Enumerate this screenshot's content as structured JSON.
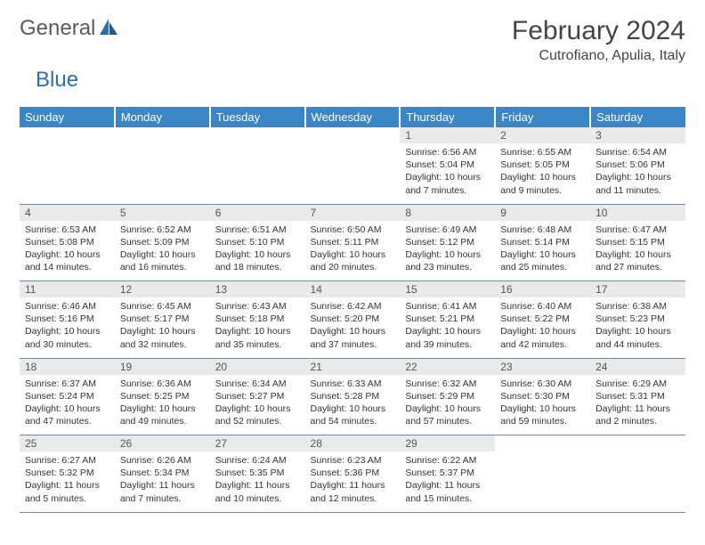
{
  "logo": {
    "text1": "General",
    "text2": "Blue"
  },
  "title": "February 2024",
  "location": "Cutrofiano, Apulia, Italy",
  "colors": {
    "header_bg": "#3b86c6",
    "header_text": "#ffffff",
    "daynum_bg": "#eaeaea",
    "border": "#6a8bb0",
    "logo_gray": "#5a5a5a",
    "logo_blue": "#2b6fb0"
  },
  "day_headers": [
    "Sunday",
    "Monday",
    "Tuesday",
    "Wednesday",
    "Thursday",
    "Friday",
    "Saturday"
  ],
  "weeks": [
    {
      "days": [
        null,
        null,
        null,
        null,
        {
          "n": "1",
          "sr": "6:56 AM",
          "ss": "5:04 PM",
          "dl": "10 hours and 7 minutes."
        },
        {
          "n": "2",
          "sr": "6:55 AM",
          "ss": "5:05 PM",
          "dl": "10 hours and 9 minutes."
        },
        {
          "n": "3",
          "sr": "6:54 AM",
          "ss": "5:06 PM",
          "dl": "10 hours and 11 minutes."
        }
      ]
    },
    {
      "days": [
        {
          "n": "4",
          "sr": "6:53 AM",
          "ss": "5:08 PM",
          "dl": "10 hours and 14 minutes."
        },
        {
          "n": "5",
          "sr": "6:52 AM",
          "ss": "5:09 PM",
          "dl": "10 hours and 16 minutes."
        },
        {
          "n": "6",
          "sr": "6:51 AM",
          "ss": "5:10 PM",
          "dl": "10 hours and 18 minutes."
        },
        {
          "n": "7",
          "sr": "6:50 AM",
          "ss": "5:11 PM",
          "dl": "10 hours and 20 minutes."
        },
        {
          "n": "8",
          "sr": "6:49 AM",
          "ss": "5:12 PM",
          "dl": "10 hours and 23 minutes."
        },
        {
          "n": "9",
          "sr": "6:48 AM",
          "ss": "5:14 PM",
          "dl": "10 hours and 25 minutes."
        },
        {
          "n": "10",
          "sr": "6:47 AM",
          "ss": "5:15 PM",
          "dl": "10 hours and 27 minutes."
        }
      ]
    },
    {
      "days": [
        {
          "n": "11",
          "sr": "6:46 AM",
          "ss": "5:16 PM",
          "dl": "10 hours and 30 minutes."
        },
        {
          "n": "12",
          "sr": "6:45 AM",
          "ss": "5:17 PM",
          "dl": "10 hours and 32 minutes."
        },
        {
          "n": "13",
          "sr": "6:43 AM",
          "ss": "5:18 PM",
          "dl": "10 hours and 35 minutes."
        },
        {
          "n": "14",
          "sr": "6:42 AM",
          "ss": "5:20 PM",
          "dl": "10 hours and 37 minutes."
        },
        {
          "n": "15",
          "sr": "6:41 AM",
          "ss": "5:21 PM",
          "dl": "10 hours and 39 minutes."
        },
        {
          "n": "16",
          "sr": "6:40 AM",
          "ss": "5:22 PM",
          "dl": "10 hours and 42 minutes."
        },
        {
          "n": "17",
          "sr": "6:38 AM",
          "ss": "5:23 PM",
          "dl": "10 hours and 44 minutes."
        }
      ]
    },
    {
      "days": [
        {
          "n": "18",
          "sr": "6:37 AM",
          "ss": "5:24 PM",
          "dl": "10 hours and 47 minutes."
        },
        {
          "n": "19",
          "sr": "6:36 AM",
          "ss": "5:25 PM",
          "dl": "10 hours and 49 minutes."
        },
        {
          "n": "20",
          "sr": "6:34 AM",
          "ss": "5:27 PM",
          "dl": "10 hours and 52 minutes."
        },
        {
          "n": "21",
          "sr": "6:33 AM",
          "ss": "5:28 PM",
          "dl": "10 hours and 54 minutes."
        },
        {
          "n": "22",
          "sr": "6:32 AM",
          "ss": "5:29 PM",
          "dl": "10 hours and 57 minutes."
        },
        {
          "n": "23",
          "sr": "6:30 AM",
          "ss": "5:30 PM",
          "dl": "10 hours and 59 minutes."
        },
        {
          "n": "24",
          "sr": "6:29 AM",
          "ss": "5:31 PM",
          "dl": "11 hours and 2 minutes."
        }
      ]
    },
    {
      "days": [
        {
          "n": "25",
          "sr": "6:27 AM",
          "ss": "5:32 PM",
          "dl": "11 hours and 5 minutes."
        },
        {
          "n": "26",
          "sr": "6:26 AM",
          "ss": "5:34 PM",
          "dl": "11 hours and 7 minutes."
        },
        {
          "n": "27",
          "sr": "6:24 AM",
          "ss": "5:35 PM",
          "dl": "11 hours and 10 minutes."
        },
        {
          "n": "28",
          "sr": "6:23 AM",
          "ss": "5:36 PM",
          "dl": "11 hours and 12 minutes."
        },
        {
          "n": "29",
          "sr": "6:22 AM",
          "ss": "5:37 PM",
          "dl": "11 hours and 15 minutes."
        },
        null,
        null
      ]
    }
  ],
  "labels": {
    "sunrise": "Sunrise:",
    "sunset": "Sunset:",
    "daylight": "Daylight:"
  }
}
